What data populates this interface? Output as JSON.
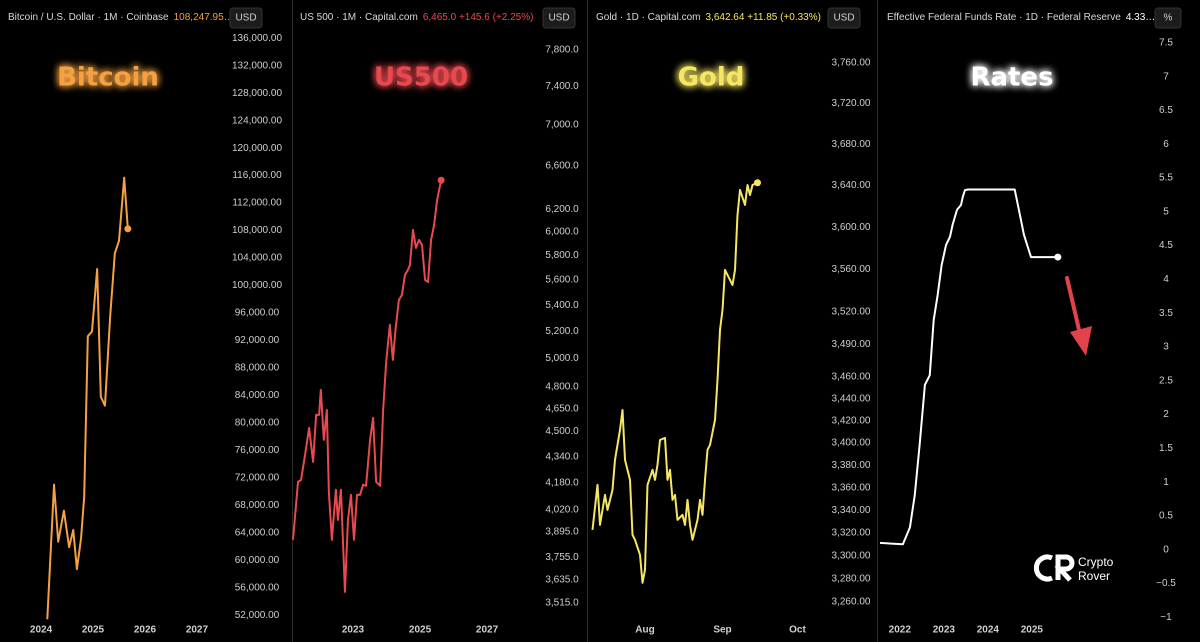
{
  "chart_data": [
    {
      "type": "line",
      "title": "Bitcoin",
      "header": "Bitcoin / U.S. Dollar · 1M · Coinbase",
      "price": "108,247.95…",
      "unit": "USD",
      "color": "#f5a142",
      "log_scale": false,
      "grid": false,
      "xlim": [
        2023.21,
        2027.54
      ],
      "xticks": [
        2024,
        2025,
        2026,
        2027
      ],
      "ylim": [
        51000,
        137200
      ],
      "yticks": [
        {
          "value": 136000,
          "label": "136,000.00"
        },
        {
          "value": 132000,
          "label": "132,000.00"
        },
        {
          "value": 128000,
          "label": "128,000.00"
        },
        {
          "value": 124000,
          "label": "124,000.00"
        },
        {
          "value": 120000,
          "label": "120,000.00"
        },
        {
          "value": 116000,
          "label": "116,000.00"
        },
        {
          "value": 112000,
          "label": "112,000.00"
        },
        {
          "value": 108000,
          "label": "108,000.00"
        },
        {
          "value": 104000,
          "label": "104,000.00"
        },
        {
          "value": 100000,
          "label": "100,000.00"
        },
        {
          "value": 96000,
          "label": "96,000.00"
        },
        {
          "value": 92000,
          "label": "92,000.00"
        },
        {
          "value": 88000,
          "label": "88,000.00"
        },
        {
          "value": 84000,
          "label": "84,000.00"
        },
        {
          "value": 80000,
          "label": "80,000.00"
        },
        {
          "value": 76000,
          "label": "76,000.00"
        },
        {
          "value": 72000,
          "label": "72,000.00"
        },
        {
          "value": 68000,
          "label": "68,000.00"
        },
        {
          "value": 64000,
          "label": "64,000.00"
        },
        {
          "value": 60000,
          "label": "60,000.00"
        },
        {
          "value": 56000,
          "label": "56,000.00"
        },
        {
          "value": 52000,
          "label": "52,000.00"
        }
      ],
      "x": [
        2024.12,
        2024.25,
        2024.33,
        2024.44,
        2024.54,
        2024.62,
        2024.69,
        2024.77,
        2024.83,
        2024.9,
        2024.98,
        2025.08,
        2025.15,
        2025.23,
        2025.33,
        2025.42,
        2025.5,
        2025.6,
        2025.67
      ],
      "values": [
        51400,
        71000,
        62700,
        67200,
        61900,
        64400,
        58700,
        63200,
        69200,
        92600,
        93300,
        102400,
        83800,
        82500,
        95500,
        104700,
        106500,
        115700,
        108248
      ]
    },
    {
      "type": "line",
      "title": "US500",
      "header": "US 500 · 1M · Capital.com",
      "price": "6,465.0 +145.6 (+2.25%)",
      "unit": "USD",
      "color": "#e84a4f",
      "log_scale": true,
      "grid": false,
      "xlim": [
        2021.21,
        2028.58
      ],
      "xticks": [
        2023,
        2025,
        2027
      ],
      "ylim": [
        3420,
        8028
      ],
      "yticks": [
        {
          "value": 7800,
          "label": "7,800.0"
        },
        {
          "value": 7400,
          "label": "7,400.0"
        },
        {
          "value": 7000,
          "label": "7,000.0"
        },
        {
          "value": 6600,
          "label": "6,600.0"
        },
        {
          "value": 6200,
          "label": "6,200.0"
        },
        {
          "value": 6000,
          "label": "6,000.0"
        },
        {
          "value": 5800,
          "label": "5,800.0"
        },
        {
          "value": 5600,
          "label": "5,600.0"
        },
        {
          "value": 5400,
          "label": "5,400.0"
        },
        {
          "value": 5200,
          "label": "5,200.0"
        },
        {
          "value": 5000,
          "label": "5,000.0"
        },
        {
          "value": 4800,
          "label": "4,800.0"
        },
        {
          "value": 4650,
          "label": "4,650.0"
        },
        {
          "value": 4500,
          "label": "4,500.0"
        },
        {
          "value": 4340,
          "label": "4,340.0"
        },
        {
          "value": 4180,
          "label": "4,180.0"
        },
        {
          "value": 4020,
          "label": "4,020.0"
        },
        {
          "value": 3895,
          "label": "3,895.0"
        },
        {
          "value": 3755,
          "label": "3,755.0"
        },
        {
          "value": 3635,
          "label": "3,635.0"
        },
        {
          "value": 3515,
          "label": "3,515.0"
        }
      ],
      "x": [
        2021.21,
        2021.36,
        2021.45,
        2021.57,
        2021.69,
        2021.81,
        2021.9,
        2021.99,
        2022.04,
        2022.13,
        2022.22,
        2022.28,
        2022.37,
        2022.49,
        2022.55,
        2022.64,
        2022.76,
        2022.85,
        2022.94,
        2023.03,
        2023.12,
        2023.21,
        2023.3,
        2023.39,
        2023.51,
        2023.6,
        2023.69,
        2023.81,
        2023.9,
        2023.99,
        2024.1,
        2024.19,
        2024.28,
        2024.37,
        2024.46,
        2024.55,
        2024.64,
        2024.7,
        2024.79,
        2024.88,
        2024.97,
        2025.06,
        2025.15,
        2025.24,
        2025.33,
        2025.42,
        2025.51,
        2025.63
      ],
      "values": [
        3850,
        4186,
        4197,
        4352,
        4524,
        4308,
        4610,
        4610,
        4779,
        4447,
        4643,
        4125,
        3850,
        4138,
        3962,
        4138,
        3572,
        3962,
        4108,
        3850,
        4108,
        4108,
        4168,
        4162,
        4447,
        4590,
        4186,
        4162,
        4643,
        4976,
        5248,
        4990,
        5241,
        5440,
        5480,
        5640,
        5681,
        5722,
        6018,
        5864,
        5932,
        5889,
        5600,
        5583,
        5932,
        6061,
        6284,
        6465
      ]
    },
    {
      "type": "line",
      "title": "Gold",
      "header": "Gold · 1D · Capital.com",
      "price": "3,642.64 +11.85 (+0.33%)",
      "unit": "USD",
      "color": "#f5e663",
      "log_scale": true,
      "grid": false,
      "xlim": [
        191,
        285
      ],
      "xticks": [
        {
          "value": 213,
          "label": "Aug"
        },
        {
          "value": 244,
          "label": "Sep"
        },
        {
          "value": 274,
          "label": "Oct"
        }
      ],
      "ylim": [
        3242.6,
        3793
      ],
      "yticks": [
        {
          "value": 3760,
          "label": "3,760.00"
        },
        {
          "value": 3720,
          "label": "3,720.00"
        },
        {
          "value": 3680,
          "label": "3,680.00"
        },
        {
          "value": 3640,
          "label": "3,640.00"
        },
        {
          "value": 3600,
          "label": "3,600.00"
        },
        {
          "value": 3560,
          "label": "3,560.00"
        },
        {
          "value": 3520,
          "label": "3,520.00"
        },
        {
          "value": 3490,
          "label": "3,490.00"
        },
        {
          "value": 3460,
          "label": "3,460.00"
        },
        {
          "value": 3440,
          "label": "3,440.00"
        },
        {
          "value": 3420,
          "label": "3,420.00"
        },
        {
          "value": 3400,
          "label": "3,400.00"
        },
        {
          "value": 3380,
          "label": "3,380.00"
        },
        {
          "value": 3360,
          "label": "3,360.00"
        },
        {
          "value": 3340,
          "label": "3,340.00"
        },
        {
          "value": 3320,
          "label": "3,320.00"
        },
        {
          "value": 3300,
          "label": "3,300.00"
        },
        {
          "value": 3280,
          "label": "3,280.00"
        },
        {
          "value": 3260,
          "label": "3,260.00"
        }
      ],
      "x": [
        192,
        194,
        195,
        197,
        198,
        200,
        201,
        203,
        204,
        205,
        207,
        208,
        209,
        211,
        212,
        213,
        214,
        216,
        217,
        218,
        219,
        221,
        222,
        223,
        224,
        225,
        226,
        228,
        229,
        230,
        231,
        232,
        234,
        235,
        236,
        237,
        238,
        239,
        241,
        242,
        243,
        244,
        245,
        247,
        248,
        249,
        250,
        251,
        253,
        254,
        255,
        256,
        258
      ],
      "values": [
        3322.7,
        3362.5,
        3327.1,
        3353.6,
        3340.3,
        3358.1,
        3384.9,
        3411.8,
        3429.9,
        3384.9,
        3367.0,
        3318.3,
        3313.9,
        3300.8,
        3276.4,
        3287.7,
        3362.5,
        3375.9,
        3367.0,
        3380.4,
        3402.8,
        3404.6,
        3367.0,
        3375.9,
        3349.2,
        3353.6,
        3331.5,
        3335.9,
        3327.1,
        3349.2,
        3327.1,
        3313.9,
        3331.5,
        3349.2,
        3335.9,
        3367.0,
        3393.9,
        3398.3,
        3420.9,
        3457.3,
        3503.4,
        3522.0,
        3559.5,
        3550.1,
        3545.3,
        3559.5,
        3611.7,
        3635.7,
        3621.3,
        3640.5,
        3630.8,
        3640.5,
        3642.64
      ]
    },
    {
      "type": "line",
      "title": "Rates",
      "header": "Effective Federal Funds Rate · 1D · Federal Reserve",
      "price": "4.33…",
      "unit": "%",
      "color": "#ffffff",
      "log_scale": false,
      "grid": false,
      "xlim": [
        2021.55,
        2027.57
      ],
      "xticks": [
        2022,
        2023,
        2024,
        2025
      ],
      "ylim": [
        -1.07,
        7.69
      ],
      "yticks": [
        7.5,
        7,
        6.5,
        6,
        5.5,
        5,
        4.5,
        4,
        3.5,
        3,
        2.5,
        2,
        1.5,
        1,
        0.5,
        0,
        {
          "value": -0.5,
          "label": "−0.5"
        },
        {
          "value": -1,
          "label": "−1"
        }
      ],
      "x": [
        2021.55,
        2022.07,
        2022.23,
        2022.34,
        2022.45,
        2022.57,
        2022.68,
        2022.77,
        2022.86,
        2022.95,
        2023.05,
        2023.14,
        2023.2,
        2023.3,
        2023.39,
        2023.43,
        2023.48,
        2023.55,
        2024.61,
        2024.73,
        2024.82,
        2024.98,
        2025.59
      ],
      "values": [
        0.1,
        0.08,
        0.33,
        0.81,
        1.55,
        2.44,
        2.58,
        3.4,
        3.77,
        4.21,
        4.51,
        4.63,
        4.81,
        5.03,
        5.1,
        5.22,
        5.32,
        5.33,
        5.33,
        4.95,
        4.66,
        4.33,
        4.33
      ],
      "watermark": [
        "Crypto",
        "Rover"
      ]
    }
  ]
}
